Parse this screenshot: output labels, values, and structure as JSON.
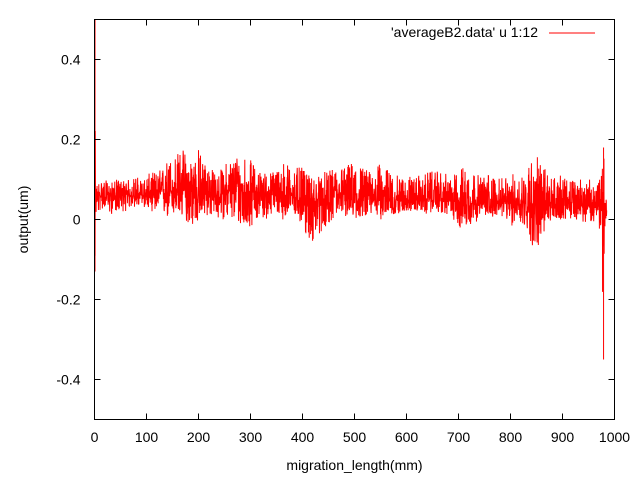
{
  "chart_data": {
    "type": "line",
    "title": "",
    "xlabel": "migration_length(mm)",
    "ylabel": "output(um)",
    "xlim": [
      0,
      1000
    ],
    "ylim": [
      -0.5,
      0.5
    ],
    "x_ticks": [
      0,
      100,
      200,
      300,
      400,
      500,
      600,
      700,
      800,
      900,
      1000
    ],
    "y_ticks": [
      -0.4,
      -0.2,
      0,
      0.2,
      0.4
    ],
    "y_tick_labels": [
      "-0.4",
      "-0.2",
      "0",
      "0.2",
      "0.4"
    ],
    "grid": false,
    "legend_position": "top-right",
    "series": [
      {
        "name": "'averageB2.data' u 1:12",
        "color": "#ff0000",
        "style": "noisy line",
        "x_range": [
          0,
          985
        ],
        "x": [
          0,
          1,
          2,
          3,
          5,
          10,
          20,
          30,
          40,
          50,
          60,
          70,
          80,
          90,
          100,
          110,
          120,
          130,
          140,
          150,
          160,
          170,
          180,
          190,
          200,
          210,
          220,
          230,
          240,
          250,
          260,
          270,
          280,
          290,
          300,
          310,
          320,
          330,
          340,
          350,
          360,
          370,
          380,
          390,
          400,
          410,
          420,
          430,
          440,
          450,
          460,
          470,
          480,
          490,
          500,
          510,
          520,
          530,
          540,
          550,
          560,
          570,
          580,
          590,
          600,
          610,
          620,
          630,
          640,
          650,
          660,
          670,
          680,
          690,
          700,
          710,
          720,
          730,
          740,
          750,
          760,
          770,
          780,
          790,
          800,
          810,
          820,
          830,
          840,
          850,
          860,
          870,
          880,
          890,
          900,
          910,
          920,
          930,
          940,
          950,
          960,
          970,
          975,
          978,
          980,
          982,
          984,
          985
        ],
        "mean": [
          0.05,
          0.0,
          0.06,
          0.06,
          0.06,
          0.06,
          0.06,
          0.06,
          0.06,
          0.06,
          0.06,
          0.06,
          0.06,
          0.06,
          0.06,
          0.06,
          0.06,
          0.07,
          0.07,
          0.07,
          0.07,
          0.07,
          0.07,
          0.07,
          0.07,
          0.07,
          0.07,
          0.06,
          0.06,
          0.07,
          0.07,
          0.07,
          0.07,
          0.07,
          0.07,
          0.07,
          0.07,
          0.06,
          0.06,
          0.07,
          0.06,
          0.06,
          0.06,
          0.05,
          0.05,
          0.04,
          0.04,
          0.05,
          0.05,
          0.05,
          0.06,
          0.06,
          0.06,
          0.06,
          0.06,
          0.06,
          0.06,
          0.06,
          0.06,
          0.06,
          0.06,
          0.05,
          0.05,
          0.05,
          0.05,
          0.05,
          0.05,
          0.05,
          0.05,
          0.05,
          0.05,
          0.05,
          0.05,
          0.05,
          0.05,
          0.05,
          0.05,
          0.04,
          0.04,
          0.04,
          0.04,
          0.04,
          0.04,
          0.04,
          0.04,
          0.04,
          0.04,
          0.04,
          0.04,
          0.04,
          0.04,
          0.04,
          0.04,
          0.04,
          0.04,
          0.04,
          0.04,
          0.04,
          0.04,
          0.04,
          0.04,
          0.04,
          0.04,
          0.04,
          0.04,
          0.04,
          0.04,
          0.0
        ],
        "low": [
          -0.13,
          -0.13,
          0.0,
          0.0,
          0.01,
          0.02,
          0.03,
          0.01,
          0.02,
          0.02,
          0.02,
          0.03,
          0.03,
          0.03,
          0.03,
          0.02,
          0.02,
          0.01,
          0.0,
          0.01,
          0.0,
          0.0,
          -0.01,
          -0.02,
          -0.01,
          0.0,
          0.01,
          0.0,
          0.0,
          0.0,
          0.0,
          -0.01,
          -0.02,
          -0.03,
          -0.02,
          0.0,
          0.0,
          0.0,
          0.01,
          0.01,
          0.0,
          0.0,
          0.01,
          0.0,
          -0.02,
          -0.05,
          -0.06,
          -0.04,
          -0.03,
          -0.01,
          0.0,
          0.01,
          0.01,
          0.0,
          0.0,
          0.0,
          0.01,
          0.01,
          0.0,
          0.0,
          0.0,
          0.01,
          0.01,
          0.02,
          0.02,
          0.02,
          0.02,
          0.02,
          0.01,
          0.02,
          0.02,
          0.01,
          0.01,
          0.0,
          -0.02,
          -0.03,
          -0.02,
          -0.01,
          0.0,
          0.0,
          0.0,
          0.01,
          0.01,
          0.0,
          -0.02,
          -0.01,
          -0.01,
          -0.03,
          -0.06,
          -0.1,
          -0.05,
          -0.02,
          -0.01,
          0.0,
          0.0,
          0.0,
          0.0,
          0.0,
          -0.01,
          0.0,
          -0.01,
          -0.02,
          -0.05,
          -0.35,
          -0.1,
          -0.02,
          -0.03,
          -0.05
        ],
        "high": [
          0.5,
          0.5,
          0.09,
          0.08,
          0.09,
          0.1,
          0.1,
          0.09,
          0.1,
          0.1,
          0.1,
          0.1,
          0.11,
          0.1,
          0.11,
          0.12,
          0.12,
          0.13,
          0.15,
          0.16,
          0.17,
          0.18,
          0.16,
          0.16,
          0.18,
          0.15,
          0.14,
          0.12,
          0.12,
          0.14,
          0.15,
          0.17,
          0.16,
          0.17,
          0.15,
          0.13,
          0.12,
          0.12,
          0.12,
          0.13,
          0.15,
          0.14,
          0.14,
          0.13,
          0.13,
          0.11,
          0.11,
          0.11,
          0.12,
          0.12,
          0.13,
          0.13,
          0.14,
          0.14,
          0.15,
          0.14,
          0.13,
          0.12,
          0.13,
          0.14,
          0.13,
          0.12,
          0.11,
          0.11,
          0.11,
          0.11,
          0.11,
          0.11,
          0.12,
          0.12,
          0.12,
          0.12,
          0.11,
          0.11,
          0.12,
          0.14,
          0.14,
          0.12,
          0.11,
          0.11,
          0.12,
          0.11,
          0.1,
          0.11,
          0.11,
          0.12,
          0.12,
          0.13,
          0.15,
          0.17,
          0.14,
          0.12,
          0.11,
          0.11,
          0.11,
          0.1,
          0.1,
          0.1,
          0.11,
          0.1,
          0.1,
          0.1,
          0.11,
          0.15,
          0.18,
          0.06,
          0.05,
          0.04
        ]
      }
    ]
  }
}
